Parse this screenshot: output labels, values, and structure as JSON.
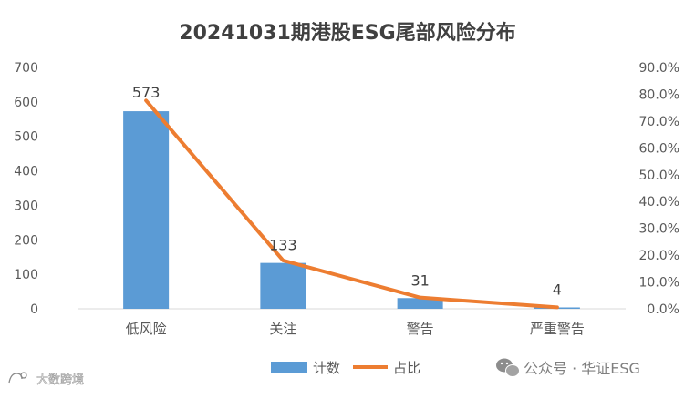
{
  "chart_data": {
    "type": "bar",
    "title": "20241031期港股ESG尾部风险分布",
    "categories": [
      "低风险",
      "关注",
      "警告",
      "严重警告"
    ],
    "series": [
      {
        "name": "计数",
        "type": "bar",
        "axis": "left",
        "values": [
          573,
          133,
          31,
          4
        ],
        "color": "#5B9BD5"
      },
      {
        "name": "占比",
        "type": "line",
        "axis": "right",
        "values": [
          0.7766,
          0.1802,
          0.042,
          0.0054
        ],
        "color": "#ED7D31"
      }
    ],
    "data_labels": [
      "573",
      "133",
      "31",
      "4"
    ],
    "y_left": {
      "ylim": [
        0,
        700
      ],
      "ticks": [
        "0",
        "100",
        "200",
        "300",
        "400",
        "500",
        "600",
        "700"
      ]
    },
    "y_right": {
      "ylim": [
        0,
        0.9
      ],
      "ticks": [
        "0.0%",
        "10.0%",
        "20.0%",
        "30.0%",
        "40.0%",
        "50.0%",
        "60.0%",
        "70.0%",
        "80.0%",
        "90.0%"
      ]
    },
    "grid": false,
    "legend_position": "bottom"
  },
  "watermarks": {
    "left": "大数跨境",
    "right": "公众号 · 华证ESG"
  },
  "colors": {
    "text": "#595959",
    "title": "#404040",
    "axis": "#D9D9D9"
  }
}
